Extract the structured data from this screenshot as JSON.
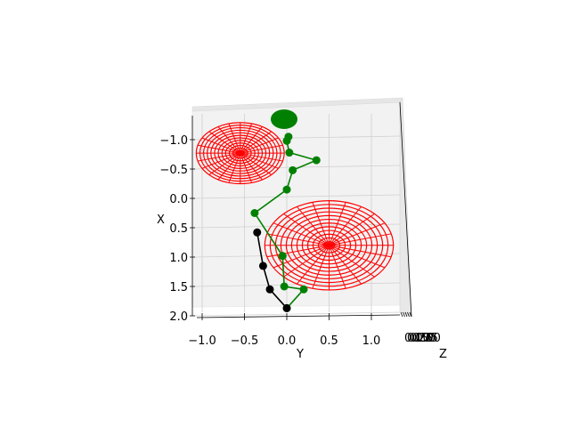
{
  "chart_data": {
    "type": "scatter",
    "title": "",
    "axes": {
      "x_label": "X",
      "y_label": "Y",
      "z_label": "Z",
      "x_ticks": [
        "−1.0",
        "−0.5",
        "0.0",
        "0.5",
        "1.0",
        "1.5",
        "2.0"
      ],
      "y_ticks": [
        "−1.0",
        "−0.5",
        "0.0",
        "0.5",
        "1.0"
      ],
      "z_ticks_overlapping": "0.250",
      "x_range": [
        -1.2,
        2.05
      ],
      "y_range": [
        -1.15,
        1.4
      ],
      "grid": true,
      "view": "3D, viewed down the Z axis"
    },
    "series": [
      {
        "color": "#008000",
        "marker": "circle",
        "points": [
          {
            "y": 0.02,
            "x": -1.05
          },
          {
            "y": 0.0,
            "x": -0.98
          },
          {
            "y": 0.03,
            "x": -0.78
          },
          {
            "y": 0.35,
            "x": -0.65
          },
          {
            "y": 0.07,
            "x": -0.48
          },
          {
            "y": 0.0,
            "x": -0.15
          },
          {
            "y": -0.38,
            "x": 0.25
          },
          {
            "y": -0.05,
            "x": 0.98
          },
          {
            "y": -0.03,
            "x": 1.5
          },
          {
            "y": 0.2,
            "x": 1.55
          },
          {
            "y": 0.0,
            "x": 1.87
          }
        ]
      },
      {
        "color": "#000000",
        "marker": "circle",
        "points": [
          {
            "y": -0.35,
            "x": 0.58
          },
          {
            "y": -0.28,
            "x": 1.15
          },
          {
            "y": -0.2,
            "x": 1.55
          },
          {
            "y": 0.0,
            "x": 1.87
          }
        ]
      },
      {
        "color": "#ff0000",
        "shape": "wireframe sphere",
        "center": {
          "y": -0.55,
          "x": -0.77
        },
        "radius": 0.52
      },
      {
        "color": "#ff0000",
        "shape": "wireframe sphere",
        "center": {
          "y": 0.5,
          "x": 0.8
        },
        "radius": 0.76
      }
    ],
    "legend": "none"
  }
}
